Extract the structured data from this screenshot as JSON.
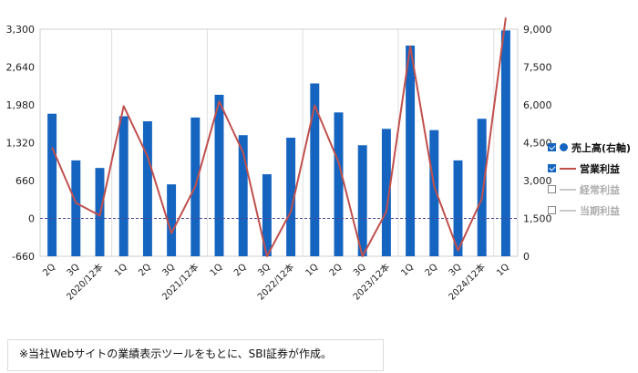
{
  "chart_data": {
    "type": "bar",
    "categories": [
      "2Q",
      "3Q",
      "2020/12本",
      "1Q",
      "2Q",
      "3Q",
      "2021/12本",
      "1Q",
      "2Q",
      "3Q",
      "2022/12本",
      "1Q",
      "2Q",
      "3Q",
      "2023/12本",
      "1Q",
      "2Q",
      "3Q",
      "2024/12本",
      "1Q"
    ],
    "series": [
      {
        "name": "売上高(右軸)",
        "type": "bar",
        "axis": "right",
        "color": "#1565c0",
        "values": [
          5650,
          3800,
          3500,
          5550,
          5350,
          2850,
          5500,
          6400,
          4800,
          3250,
          4700,
          6850,
          5700,
          4400,
          5050,
          8350,
          5000,
          3800,
          5450,
          8950
        ]
      },
      {
        "name": "営業利益",
        "type": "line",
        "axis": "left",
        "color": "#c0504d",
        "values": [
          1240,
          270,
          50,
          1960,
          1080,
          -260,
          560,
          2040,
          1150,
          -660,
          120,
          1970,
          980,
          -660,
          120,
          3000,
          560,
          -560,
          340,
          3500
        ]
      }
    ],
    "left_axis": {
      "min": -660,
      "max": 3300,
      "ticks": [
        "3,300",
        "2,640",
        "1,980",
        "1,320",
        "660",
        "0",
        "-660"
      ]
    },
    "right_axis": {
      "min": 0,
      "max": 9000,
      "ticks": [
        "9,000",
        "7,500",
        "6,000",
        "4,500",
        "3,000",
        "1,500",
        "0"
      ]
    },
    "zero_line": {
      "style": "dashed",
      "color": "#4a4a9a"
    },
    "grid": "vertical",
    "legend_placement": "right",
    "legend": [
      {
        "label": "売上高(右軸)",
        "checked": true,
        "marker": "dot",
        "color": "#1565c0",
        "active": true
      },
      {
        "label": "営業利益",
        "checked": true,
        "marker": "line",
        "color": "#c0504d",
        "active": true
      },
      {
        "label": "経常利益",
        "checked": false,
        "marker": "line",
        "color": "#c8c8c8",
        "active": false
      },
      {
        "label": "当期利益",
        "checked": false,
        "marker": "line",
        "color": "#c8c8c8",
        "active": false
      }
    ]
  },
  "source_note": "※当社Webサイトの業績表示ツールをもとに、SBI証券が作成。"
}
